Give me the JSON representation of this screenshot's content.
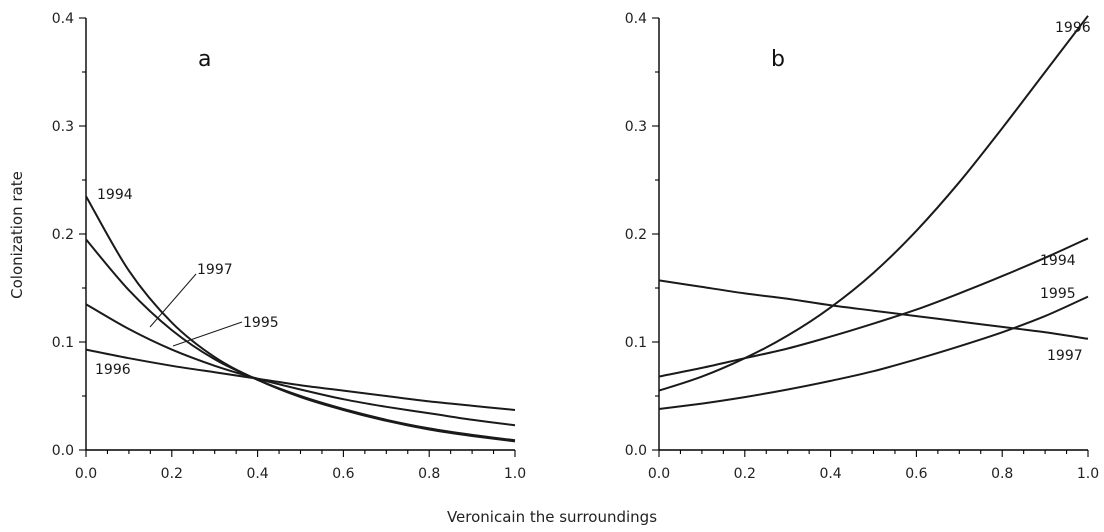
{
  "xlabel": "Veronicain the surroundings",
  "ylabel": "Colonization rate",
  "chart_data": [
    {
      "type": "line",
      "panel_label": "a",
      "xlim": [
        0,
        1
      ],
      "ylim": [
        0,
        0.4
      ],
      "xticks": [
        "0.0",
        "0.2",
        "0.4",
        "0.6",
        "0.8",
        "1.0"
      ],
      "yticks": [
        "0.0",
        "0.1",
        "0.2",
        "0.3",
        "0.4"
      ],
      "x": [
        0,
        0.1,
        0.2,
        0.3,
        0.4,
        0.5,
        0.6,
        0.7,
        0.8,
        0.9,
        1.0
      ],
      "series": [
        {
          "name": "1994",
          "values": [
            0.235,
            0.166,
            0.118,
            0.086,
            0.065,
            0.049,
            0.037,
            0.027,
            0.019,
            0.013,
            0.008
          ]
        },
        {
          "name": "1997",
          "values": [
            0.195,
            0.148,
            0.111,
            0.084,
            0.065,
            0.05,
            0.038,
            0.028,
            0.02,
            0.014,
            0.009
          ]
        },
        {
          "name": "1995",
          "values": [
            0.135,
            0.112,
            0.093,
            0.078,
            0.066,
            0.056,
            0.047,
            0.04,
            0.034,
            0.028,
            0.023
          ]
        },
        {
          "name": "1996",
          "values": [
            0.093,
            0.085,
            0.078,
            0.072,
            0.066,
            0.06,
            0.055,
            0.05,
            0.045,
            0.041,
            0.037
          ]
        }
      ]
    },
    {
      "type": "line",
      "panel_label": "b",
      "xlim": [
        0,
        1
      ],
      "ylim": [
        0,
        0.4
      ],
      "xticks": [
        "0.0",
        "0.2",
        "0.4",
        "0.6",
        "0.8",
        "1.0"
      ],
      "yticks": [
        "0.0",
        "0.1",
        "0.2",
        "0.3",
        "0.4"
      ],
      "x": [
        0,
        0.1,
        0.2,
        0.3,
        0.4,
        0.5,
        0.6,
        0.7,
        0.8,
        0.9,
        1.0
      ],
      "series": [
        {
          "name": "1996",
          "values": [
            0.055,
            0.068,
            0.085,
            0.106,
            0.132,
            0.164,
            0.203,
            0.248,
            0.298,
            0.35,
            0.402
          ]
        },
        {
          "name": "1994",
          "values": [
            0.068,
            0.076,
            0.085,
            0.094,
            0.105,
            0.117,
            0.13,
            0.145,
            0.161,
            0.178,
            0.196
          ]
        },
        {
          "name": "1995",
          "values": [
            0.038,
            0.043,
            0.049,
            0.056,
            0.064,
            0.073,
            0.084,
            0.096,
            0.109,
            0.124,
            0.142
          ]
        },
        {
          "name": "1997",
          "values": [
            0.157,
            0.151,
            0.145,
            0.14,
            0.134,
            0.129,
            0.124,
            0.119,
            0.114,
            0.109,
            0.103
          ]
        }
      ]
    }
  ]
}
